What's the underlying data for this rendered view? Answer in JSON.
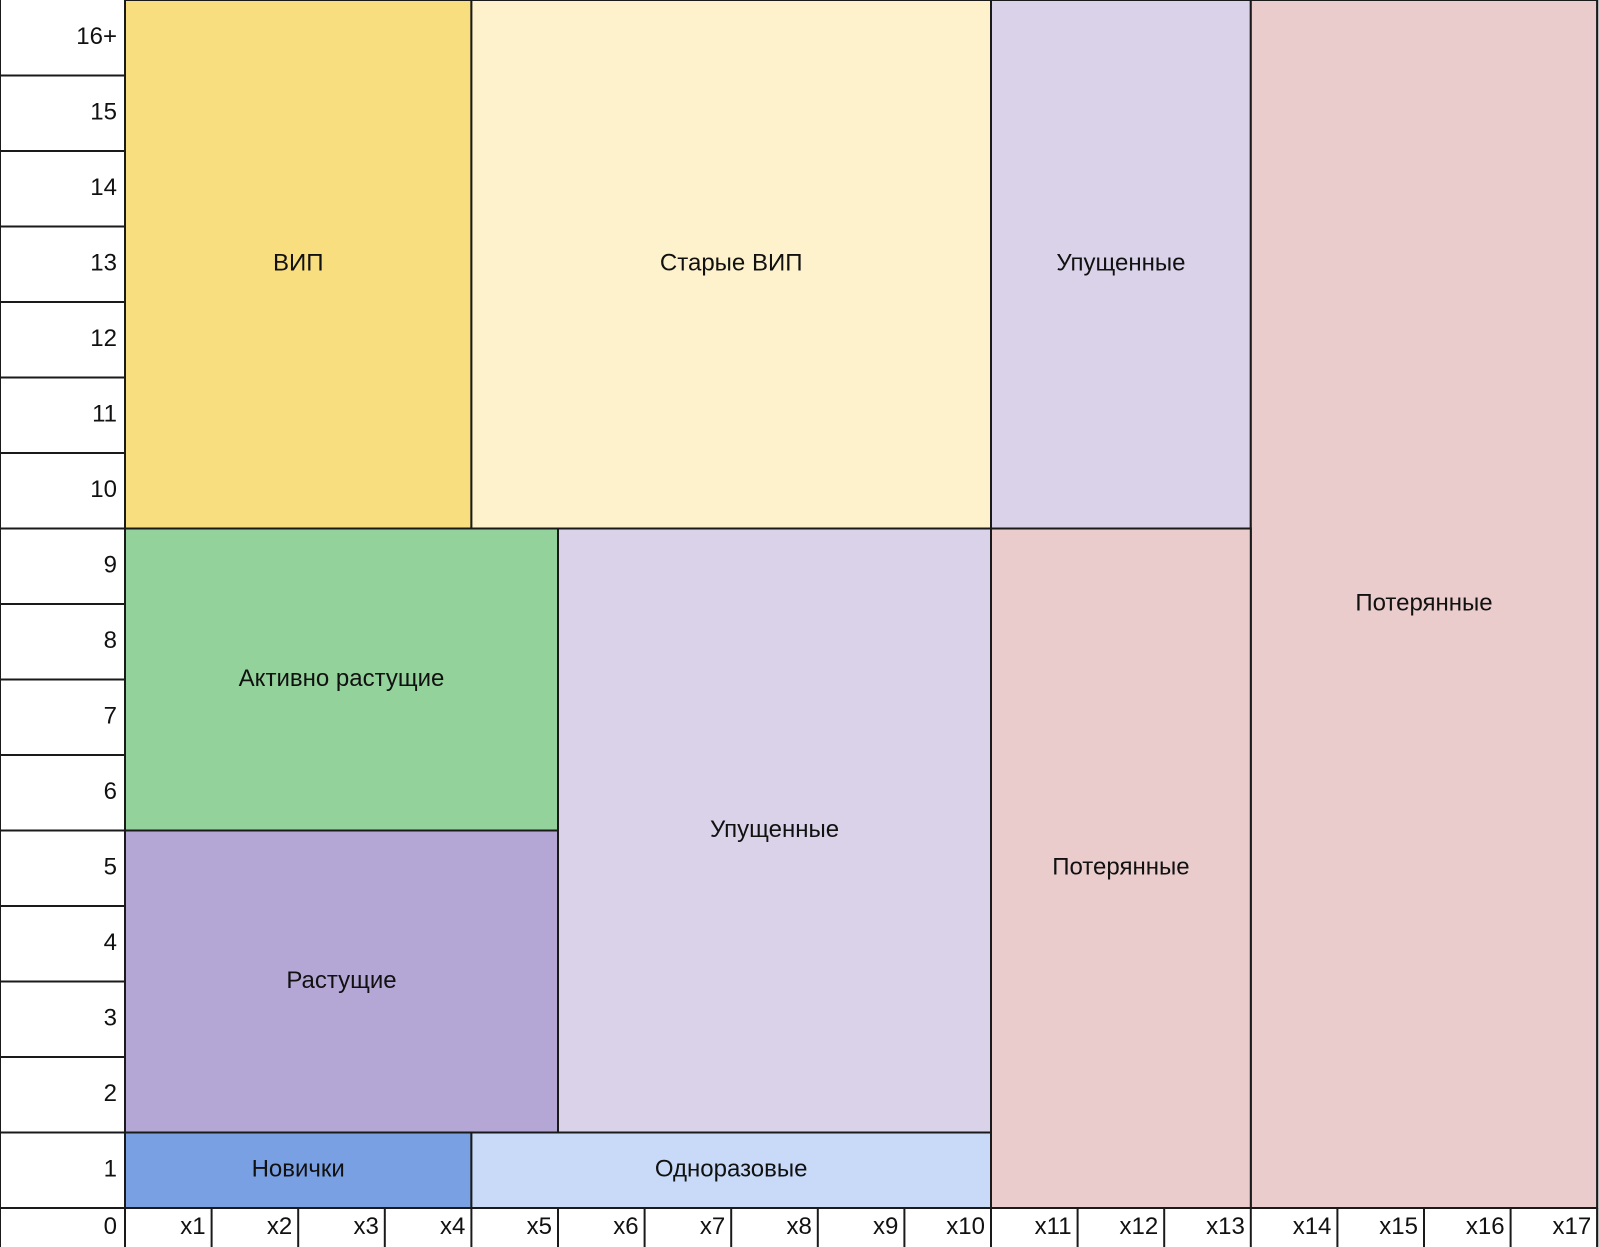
{
  "y_axis_labels": [
    "0",
    "1",
    "2",
    "3",
    "4",
    "5",
    "6",
    "7",
    "8",
    "9",
    "10",
    "11",
    "12",
    "13",
    "14",
    "15",
    "16+"
  ],
  "x_axis_labels": [
    "x1",
    "x2",
    "x3",
    "x4",
    "x5",
    "x6",
    "x7",
    "x8",
    "x9",
    "x10",
    "x11",
    "x12",
    "x13",
    "x14",
    "x15",
    "x16",
    "x17"
  ],
  "segments": [
    {
      "label": "ВИП",
      "col_start": 0,
      "col_end": 4,
      "row_start": 10,
      "row_end": 17,
      "color": "#f9de7f"
    },
    {
      "label": "Старые ВИП",
      "col_start": 4,
      "col_end": 10,
      "row_start": 10,
      "row_end": 17,
      "color": "#fef2cd"
    },
    {
      "label": "Упущенные",
      "col_start": 10,
      "col_end": 13,
      "row_start": 10,
      "row_end": 17,
      "color": "#d9d2e9"
    },
    {
      "label": "Потерянные",
      "col_start": 13,
      "col_end": 17,
      "row_start": 1,
      "row_end": 17,
      "color": "#eacccc"
    },
    {
      "label": "Активно растущие",
      "col_start": 0,
      "col_end": 5,
      "row_start": 6,
      "row_end": 10,
      "color": "#93d29a"
    },
    {
      "label": "Упущенные",
      "col_start": 5,
      "col_end": 10,
      "row_start": 2,
      "row_end": 10,
      "color": "#d9d2e9"
    },
    {
      "label": "Потерянные",
      "col_start": 10,
      "col_end": 13,
      "row_start": 1,
      "row_end": 10,
      "color": "#eacccc"
    },
    {
      "label": "Растущие",
      "col_start": 0,
      "col_end": 5,
      "row_start": 2,
      "row_end": 6,
      "color": "#b4a7d6"
    },
    {
      "label": "Новички",
      "col_start": 0,
      "col_end": 4,
      "row_start": 1,
      "row_end": 2,
      "color": "#7aa0e4"
    },
    {
      "label": "Одноразовые",
      "col_start": 4,
      "col_end": 10,
      "row_start": 1,
      "row_end": 2,
      "color": "#c9daf8"
    }
  ]
}
